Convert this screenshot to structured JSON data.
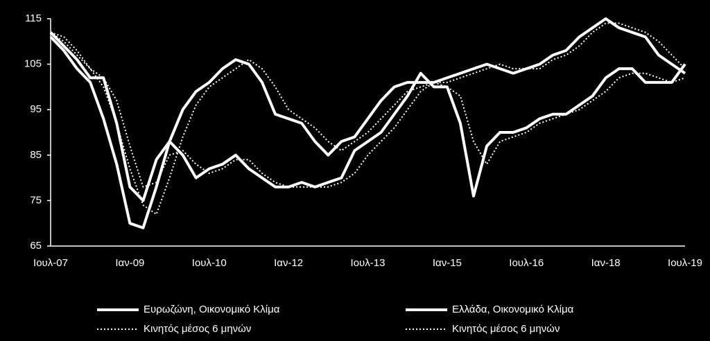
{
  "chart_data": {
    "type": "line",
    "categories": [
      "Ιουλ-07",
      null,
      null,
      null,
      null,
      null,
      "Ιαν-09",
      null,
      null,
      null,
      null,
      null,
      "Ιουλ-10",
      null,
      null,
      null,
      null,
      null,
      "Ιαν-12",
      null,
      null,
      null,
      null,
      null,
      "Ιουλ-13",
      null,
      null,
      null,
      null,
      null,
      "Ιαν-15",
      null,
      null,
      null,
      null,
      null,
      "Ιουλ-16",
      null,
      null,
      null,
      null,
      null,
      "Ιαν-18",
      null,
      null,
      null,
      null,
      null,
      "Ιουλ-19"
    ],
    "series": [
      {
        "name": "Ευρωζώνη, Οικονομικό Κλίμα",
        "color": "#ffffff",
        "style": "solid",
        "values": [
          111,
          108,
          104,
          101,
          93,
          83,
          70,
          69,
          78,
          88,
          95,
          99,
          101,
          104,
          106,
          105,
          101,
          94,
          93,
          92,
          88,
          85,
          88,
          89,
          93,
          97,
          100,
          101,
          101,
          101,
          102,
          103,
          104,
          105,
          104,
          103,
          104,
          105,
          107,
          108,
          111,
          113,
          115,
          113,
          112,
          111,
          107,
          105,
          103
        ]
      },
      {
        "name": "Κινητός μέσος 6 μηνών",
        "color": "#ffffff",
        "style": "dotted",
        "values": [
          112,
          110,
          107,
          104,
          100,
          92,
          82,
          74,
          72,
          80,
          89,
          96,
          100,
          102,
          104,
          106,
          104,
          100,
          95,
          93,
          91,
          88,
          86,
          88,
          90,
          93,
          96,
          99,
          100,
          101,
          101,
          102,
          103,
          104,
          105,
          104,
          104,
          104,
          106,
          107,
          109,
          112,
          114,
          114,
          113,
          112,
          110,
          107,
          104
        ]
      },
      {
        "name": "Ελλάδα, Οικονομικό Κλίμα",
        "color": "#ffffff",
        "style": "solid",
        "values": [
          112,
          109,
          106,
          102,
          102,
          92,
          78,
          75,
          84,
          88,
          85,
          80,
          82,
          83,
          85,
          82,
          80,
          78,
          78,
          79,
          78,
          79,
          80,
          86,
          88,
          90,
          94,
          98,
          103,
          100,
          100,
          92,
          76,
          87,
          90,
          90,
          91,
          93,
          94,
          94,
          96,
          98,
          102,
          104,
          104,
          101,
          101,
          101,
          105
        ]
      },
      {
        "name": "Κινητός μέσος 6 μηνών",
        "color": "#ffffff",
        "style": "dotted",
        "values": [
          112,
          111,
          108,
          104,
          102,
          97,
          87,
          78,
          79,
          85,
          86,
          83,
          81,
          82,
          84,
          84,
          81,
          79,
          78,
          78,
          78,
          78,
          79,
          81,
          85,
          88,
          91,
          95,
          99,
          101,
          100,
          98,
          88,
          83,
          88,
          89,
          90,
          92,
          93,
          94,
          95,
          97,
          99,
          102,
          103,
          103,
          102,
          101,
          102
        ]
      }
    ],
    "ylim": [
      65,
      115
    ],
    "yticks": [
      65,
      75,
      85,
      95,
      105,
      115
    ],
    "grid": false,
    "legend": "bottom"
  }
}
